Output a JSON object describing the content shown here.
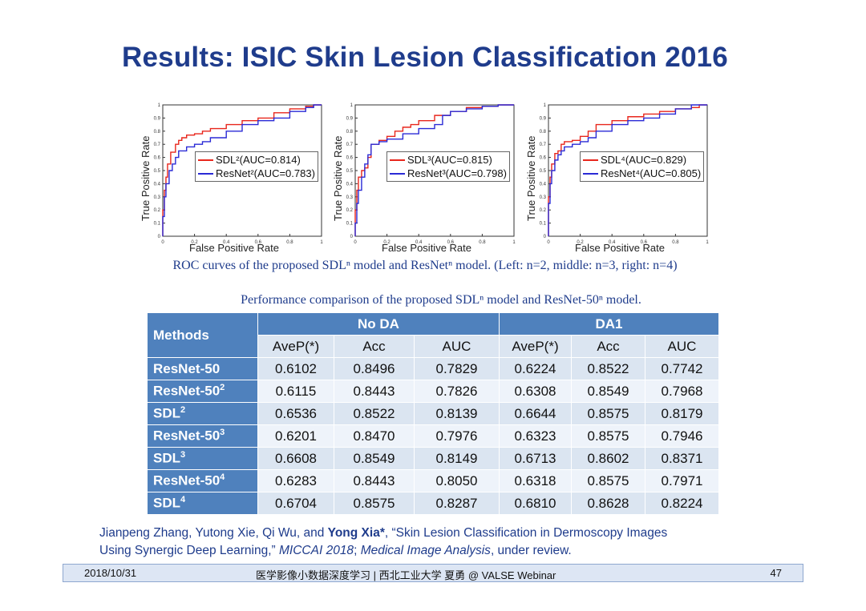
{
  "title": "Results: ISIC Skin Lesion Classification 2016",
  "roc_caption": "ROC curves of the proposed SDLⁿ model and ResNetⁿ model. (Left: n=2, middle: n=3, right: n=4)",
  "chart_data": [
    {
      "type": "line",
      "xlabel": "False Positive Rate",
      "ylabel": "True Positive Rate",
      "xlim": [
        0,
        1
      ],
      "ylim": [
        0,
        1
      ],
      "xticks": [
        "0",
        "0.2",
        "0.4",
        "0.6",
        "0.8",
        "1"
      ],
      "yticks": [
        "0",
        "0.1",
        "0.2",
        "0.3",
        "0.4",
        "0.5",
        "0.6",
        "0.7",
        "0.8",
        "0.9",
        "1"
      ],
      "legend": "center-right",
      "series": [
        {
          "name": "SDL²(AUC=0.814)",
          "color": "#e8261c",
          "x": [
            0,
            0.01,
            0.02,
            0.03,
            0.05,
            0.08,
            0.1,
            0.12,
            0.15,
            0.2,
            0.25,
            0.3,
            0.4,
            0.5,
            0.6,
            0.7,
            0.8,
            0.9,
            0.95,
            1
          ],
          "y": [
            0,
            0.2,
            0.35,
            0.45,
            0.55,
            0.64,
            0.7,
            0.73,
            0.75,
            0.77,
            0.78,
            0.8,
            0.82,
            0.85,
            0.88,
            0.9,
            0.94,
            0.97,
            0.99,
            1
          ]
        },
        {
          "name": "ResNet²(AUC=0.783)",
          "color": "#2a2ad6",
          "x": [
            0,
            0.01,
            0.02,
            0.04,
            0.06,
            0.08,
            0.1,
            0.15,
            0.2,
            0.25,
            0.3,
            0.4,
            0.5,
            0.6,
            0.7,
            0.8,
            0.9,
            0.95,
            1
          ],
          "y": [
            0,
            0.15,
            0.3,
            0.4,
            0.5,
            0.55,
            0.6,
            0.65,
            0.68,
            0.7,
            0.72,
            0.75,
            0.8,
            0.85,
            0.88,
            0.9,
            0.95,
            0.98,
            1
          ]
        }
      ]
    },
    {
      "type": "line",
      "xlabel": "False Positive Rate",
      "ylabel": "True Positive Rate",
      "xlim": [
        0,
        1
      ],
      "ylim": [
        0,
        1
      ],
      "xticks": [
        "0",
        "0.2",
        "0.4",
        "0.6",
        "0.8",
        "1"
      ],
      "yticks": [
        "0",
        "0.1",
        "0.2",
        "0.3",
        "0.4",
        "0.5",
        "0.6",
        "0.7",
        "0.8",
        "0.9",
        "1"
      ],
      "legend": "center-right",
      "series": [
        {
          "name": "SDL³(AUC=0.815)",
          "color": "#e8261c",
          "x": [
            0,
            0.01,
            0.02,
            0.04,
            0.06,
            0.08,
            0.1,
            0.15,
            0.2,
            0.25,
            0.3,
            0.35,
            0.4,
            0.5,
            0.6,
            0.7,
            0.8,
            0.9,
            1
          ],
          "y": [
            0,
            0.2,
            0.35,
            0.45,
            0.5,
            0.52,
            0.6,
            0.7,
            0.73,
            0.76,
            0.8,
            0.83,
            0.85,
            0.88,
            0.92,
            0.95,
            0.98,
            0.99,
            1
          ]
        },
        {
          "name": "ResNet³(AUC=0.798)",
          "color": "#2a2ad6",
          "x": [
            0,
            0.01,
            0.02,
            0.04,
            0.06,
            0.08,
            0.1,
            0.15,
            0.2,
            0.3,
            0.4,
            0.5,
            0.55,
            0.6,
            0.7,
            0.8,
            0.9,
            1
          ],
          "y": [
            0,
            0.1,
            0.25,
            0.35,
            0.45,
            0.55,
            0.62,
            0.7,
            0.72,
            0.74,
            0.78,
            0.82,
            0.85,
            0.92,
            0.95,
            0.97,
            0.99,
            1
          ]
        }
      ]
    },
    {
      "type": "line",
      "xlabel": "False Positive Rate",
      "ylabel": "True Positive Rate",
      "xlim": [
        0,
        1
      ],
      "ylim": [
        0,
        1
      ],
      "xticks": [
        "0",
        "0.2",
        "0.4",
        "0.6",
        "0.8",
        "1"
      ],
      "yticks": [
        "0",
        "0.1",
        "0.2",
        "0.3",
        "0.4",
        "0.5",
        "0.6",
        "0.7",
        "0.8",
        "0.9",
        "1"
      ],
      "legend": "center-right",
      "series": [
        {
          "name": "SDL⁴(AUC=0.829)",
          "color": "#e8261c",
          "x": [
            0,
            0.01,
            0.02,
            0.04,
            0.06,
            0.08,
            0.1,
            0.15,
            0.2,
            0.25,
            0.3,
            0.4,
            0.5,
            0.6,
            0.7,
            0.8,
            0.9,
            0.95,
            1
          ],
          "y": [
            0,
            0.3,
            0.45,
            0.55,
            0.63,
            0.65,
            0.7,
            0.72,
            0.73,
            0.76,
            0.8,
            0.85,
            0.88,
            0.91,
            0.93,
            0.95,
            0.97,
            0.98,
            1
          ]
        },
        {
          "name": "ResNet⁴(AUC=0.805)",
          "color": "#2a2ad6",
          "x": [
            0,
            0.01,
            0.02,
            0.04,
            0.06,
            0.08,
            0.1,
            0.15,
            0.2,
            0.25,
            0.3,
            0.4,
            0.5,
            0.6,
            0.7,
            0.8,
            0.9,
            1
          ],
          "y": [
            0,
            0.25,
            0.4,
            0.5,
            0.58,
            0.62,
            0.65,
            0.68,
            0.7,
            0.72,
            0.75,
            0.8,
            0.85,
            0.88,
            0.9,
            0.93,
            0.97,
            1
          ]
        }
      ]
    }
  ],
  "table_caption": "Performance comparison of the proposed SDLⁿ model and ResNet-50ⁿ model.",
  "table": {
    "methods_label": "Methods",
    "groups": [
      "No DA",
      "DA1"
    ],
    "columns": [
      "AveP(*)",
      "Acc",
      "AUC",
      "AveP(*)",
      "Acc",
      "AUC"
    ],
    "rows": [
      {
        "base": "ResNet-50",
        "sup": "",
        "values": [
          "0.6102",
          "0.8496",
          "0.7829",
          "0.6224",
          "0.8522",
          "0.7742"
        ]
      },
      {
        "base": "ResNet-50",
        "sup": "2",
        "values": [
          "0.6115",
          "0.8443",
          "0.7826",
          "0.6308",
          "0.8549",
          "0.7968"
        ]
      },
      {
        "base": "SDL",
        "sup": "2",
        "values": [
          "0.6536",
          "0.8522",
          "0.8139",
          "0.6644",
          "0.8575",
          "0.8179"
        ]
      },
      {
        "base": "ResNet-50",
        "sup": "3",
        "values": [
          "0.6201",
          "0.8470",
          "0.7976",
          "0.6323",
          "0.8575",
          "0.7946"
        ]
      },
      {
        "base": "SDL",
        "sup": "3",
        "values": [
          "0.6608",
          "0.8549",
          "0.8149",
          "0.6713",
          "0.8602",
          "0.8371"
        ]
      },
      {
        "base": "ResNet-50",
        "sup": "4",
        "values": [
          "0.6283",
          "0.8443",
          "0.8050",
          "0.6318",
          "0.8575",
          "0.7971"
        ]
      },
      {
        "base": "SDL",
        "sup": "4",
        "values": [
          "0.6704",
          "0.8575",
          "0.8287",
          "0.6810",
          "0.8628",
          "0.8224"
        ]
      }
    ]
  },
  "reference": {
    "authors_plain": "Jianpeng Zhang, Yutong Xie, Qi Wu, and ",
    "author_bold": "Yong Xia*",
    "title": ", “Skin Lesion Classification in Dermoscopy Images",
    "line2_start": "Using Synergic Deep Learning,” ",
    "venue1": "MICCAI 2018",
    "sep": "; ",
    "venue2": "Medical Image Analysis",
    "tail": ", under review."
  },
  "footer": {
    "date": "2018/10/31",
    "center": "医学影像小数据深度学习 | 西北工业大学 夏勇 @ VALSE Webinar",
    "page": "47"
  }
}
